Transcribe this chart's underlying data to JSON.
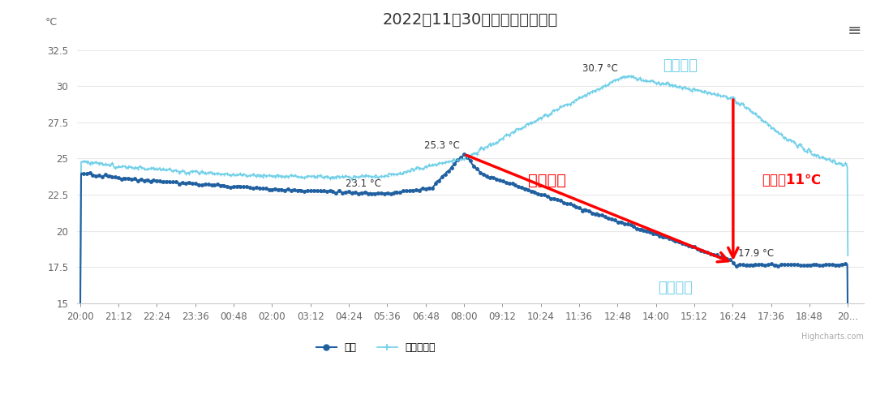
{
  "title": "2022年11月30日温度时间序列图",
  "ylabel": "°C",
  "ylim": [
    15,
    33.5
  ],
  "yticks": [
    15,
    17.5,
    20,
    22.5,
    25,
    27.5,
    30,
    32.5
  ],
  "bg_color": "#ffffff",
  "plot_bg_color": "#ffffff",
  "today_color": "#2060a0",
  "yesterday_color": "#70d0e8",
  "grid_color": "#e8e8e8",
  "legend_today": "温度",
  "legend_yesterday": "前一天温度",
  "annotation_label_yesterday": "昨日气温",
  "annotation_label_today": "今日气温",
  "annotation_drop": "降幅明显",
  "annotation_diff": "相差近11℃",
  "title_fontsize": 14,
  "axis_fontsize": 9
}
